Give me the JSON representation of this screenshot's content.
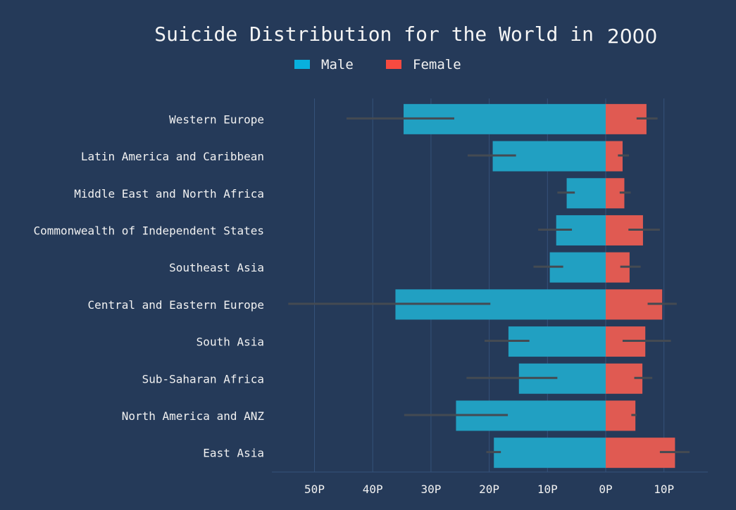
{
  "chart_data": {
    "type": "bar",
    "orientation": "horizontal-diverging",
    "title": "Suicide Distribution for the World in",
    "title_year": "2000",
    "legend": [
      {
        "name": "Male",
        "color": "#08b0de"
      },
      {
        "name": "Female",
        "color": "#f74a40"
      }
    ],
    "categories": [
      "Western Europe",
      "Latin America and Caribbean",
      "Middle East and North Africa",
      "Commonwealth of Independent States",
      "Southeast Asia",
      "Central and Eastern Europe",
      "South Asia",
      "Sub-Saharan Africa",
      "North America and ANZ",
      "East Asia"
    ],
    "series": [
      {
        "name": "Male",
        "color": "#21a0c2",
        "values": [
          -34.7,
          -19.4,
          -6.7,
          -8.5,
          -9.6,
          -36.1,
          -16.7,
          -14.9,
          -25.7,
          -19.2
        ],
        "error_low": [
          -44.5,
          -23.7,
          -8.3,
          -11.6,
          -12.4,
          -54.5,
          -20.8,
          -23.9,
          -34.6,
          -20.5
        ],
        "error_high": [
          -26.0,
          -15.4,
          -5.3,
          -5.8,
          -7.3,
          -19.8,
          -13.1,
          -8.3,
          -16.8,
          -18.0
        ]
      },
      {
        "name": "Female",
        "color": "#e05a52",
        "values": [
          7.0,
          2.9,
          3.2,
          6.4,
          4.1,
          9.7,
          6.8,
          6.3,
          5.1,
          11.9
        ],
        "error_low": [
          5.3,
          2.1,
          2.4,
          3.9,
          2.5,
          7.2,
          2.9,
          4.9,
          4.4,
          9.3
        ],
        "error_high": [
          8.9,
          4.0,
          4.3,
          9.3,
          6.0,
          12.2,
          11.2,
          8.0,
          5.3,
          14.4
        ]
      }
    ],
    "x_ticks": [
      {
        "value": -50,
        "label": "50P"
      },
      {
        "value": -40,
        "label": "40P"
      },
      {
        "value": -30,
        "label": "30P"
      },
      {
        "value": -20,
        "label": "20P"
      },
      {
        "value": -10,
        "label": "10P"
      },
      {
        "value": 0,
        "label": "0P"
      },
      {
        "value": 10,
        "label": "10P"
      }
    ],
    "xlim": [
      -57,
      17.5
    ],
    "grid": true,
    "legend_position": "top-center"
  }
}
